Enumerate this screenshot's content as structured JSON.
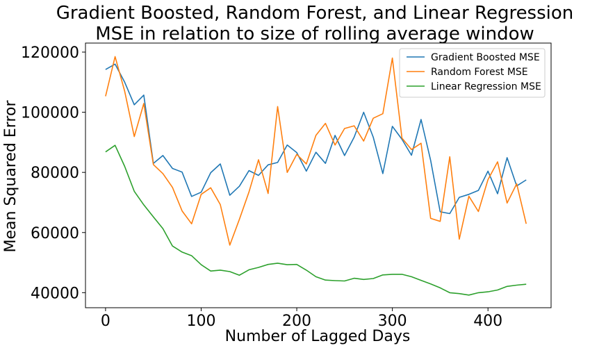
{
  "chart_data": {
    "type": "line",
    "title": "Gradient Boosted, Random Forest, and Linear Regression\nMSE in relation to size of rolling average window",
    "title_lines": [
      "Gradient Boosted, Random Forest, and Linear Regression",
      "MSE in relation to size of rolling average window"
    ],
    "xlabel": "Number of Lagged Days",
    "ylabel": "Mean Squared Error",
    "xlim": [
      -21,
      466
    ],
    "ylim": [
      35000,
      123000
    ],
    "xticks": [
      0,
      100,
      200,
      300,
      400
    ],
    "yticks": [
      40000,
      60000,
      80000,
      100000,
      120000
    ],
    "grid": false,
    "legend_position": "top-right",
    "x": [
      0,
      10,
      20,
      30,
      40,
      50,
      60,
      70,
      80,
      90,
      100,
      110,
      120,
      130,
      140,
      150,
      160,
      170,
      180,
      190,
      200,
      210,
      220,
      230,
      240,
      250,
      260,
      270,
      280,
      290,
      300,
      310,
      320,
      330,
      340,
      350,
      360,
      370,
      380,
      390,
      400,
      410,
      420,
      430,
      440
    ],
    "series": [
      {
        "name": "Gradient Boosted MSE",
        "color": "#1f77b4",
        "values": [
          114200,
          116000,
          110000,
          102500,
          105700,
          83000,
          85600,
          81300,
          80100,
          72000,
          73400,
          79900,
          82800,
          72400,
          75400,
          80600,
          79000,
          82500,
          83300,
          89100,
          86600,
          80400,
          86700,
          83000,
          92300,
          85600,
          91700,
          100000,
          91700,
          79600,
          95300,
          91000,
          85700,
          97600,
          84000,
          66900,
          66300,
          71700,
          72700,
          74000,
          80400,
          72900,
          84900,
          75500,
          77500
        ]
      },
      {
        "name": "Random Forest MSE",
        "color": "#ff7f0e",
        "values": [
          105300,
          118500,
          107000,
          91900,
          102900,
          82600,
          79600,
          75000,
          67200,
          62900,
          72700,
          74900,
          69300,
          55800,
          64400,
          73500,
          84200,
          73000,
          101900,
          80000,
          86000,
          82800,
          92300,
          96300,
          89100,
          94600,
          95500,
          90400,
          98000,
          99500,
          118000,
          91400,
          87600,
          89700,
          64700,
          63700,
          85200,
          57800,
          72100,
          67000,
          77600,
          83500,
          69800,
          76200,
          62900
        ]
      },
      {
        "name": "Linear Regression MSE",
        "color": "#2ca02c",
        "values": [
          86800,
          89000,
          82000,
          73700,
          69200,
          65200,
          61300,
          55500,
          53500,
          52300,
          49300,
          47200,
          47500,
          47000,
          45800,
          47600,
          48400,
          49400,
          49800,
          49300,
          49400,
          47500,
          45300,
          44200,
          44000,
          43900,
          44800,
          44400,
          44700,
          45900,
          46100,
          46100,
          45300,
          44100,
          42900,
          41600,
          40000,
          39700,
          39200,
          40000,
          40300,
          40900,
          42100,
          42500,
          42800
        ]
      }
    ]
  }
}
